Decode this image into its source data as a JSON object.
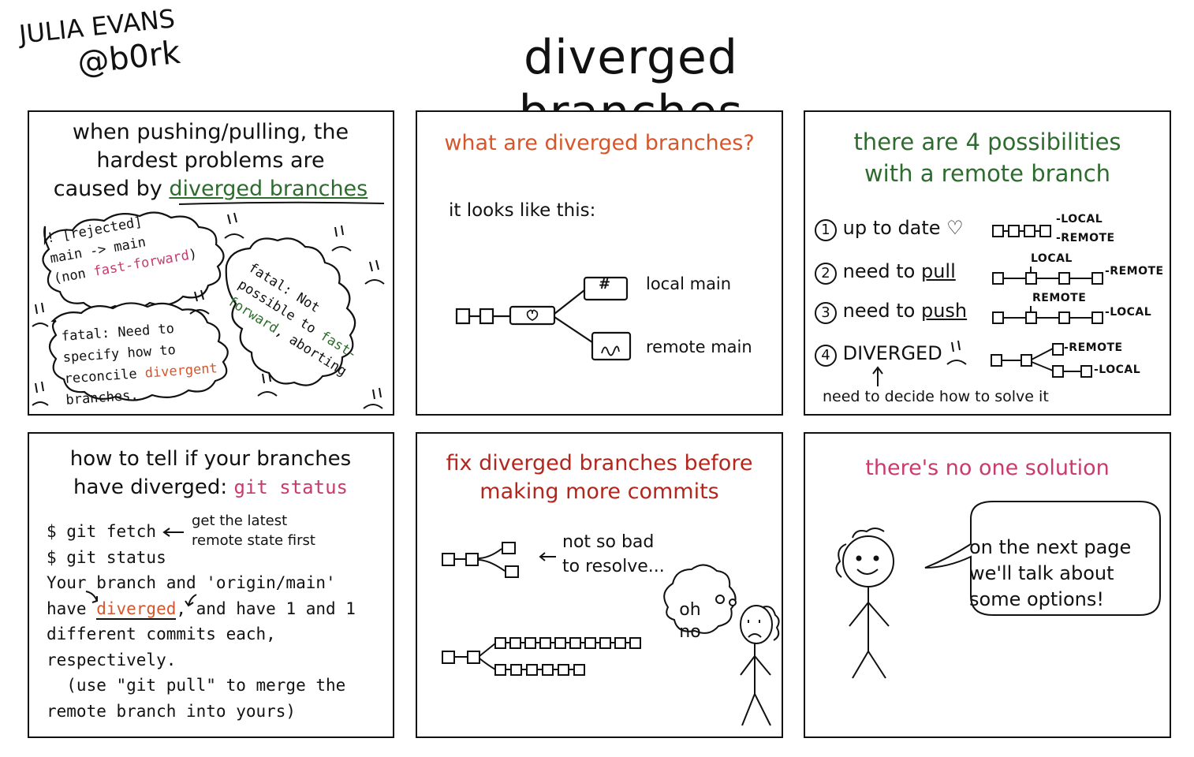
{
  "author": {
    "name": "JULIA EVANS",
    "handle": "@b0rk"
  },
  "title": "diverged branches",
  "panel1": {
    "title_line1": "when pushing/pulling, the",
    "title_line2": "hardest problems are",
    "title_line3_prefix": "caused by ",
    "title_line3_highlight": "diverged branches",
    "cloud1_line1": "! [rejected]",
    "cloud1_line2": "main -> main",
    "cloud1_line3_prefix": "(non ",
    "cloud1_line3_highlight": "fast-forward",
    "cloud1_line3_suffix": ")",
    "cloud2_line1": "fatal: Not",
    "cloud2_line2": "possible to ",
    "cloud2_line2_highlight": "fast-",
    "cloud2_line3_highlight": "forward",
    "cloud2_line3_suffix": ", aborting",
    "cloud3_line1": "fatal: Need to",
    "cloud3_line2": "specify how to",
    "cloud3_line3_prefix": "reconcile ",
    "cloud3_line3_highlight": "divergent",
    "cloud3_line4": "branches."
  },
  "panel2": {
    "title": "what are diverged branches?",
    "subtitle": "it looks like this:",
    "local_label": "local main",
    "remote_label": "remote main",
    "local_glyph": "#",
    "remote_glyph": "~"
  },
  "panel3": {
    "title_line1": "there are 4 possibilities",
    "title_line2": "with a remote branch",
    "items": [
      {
        "num": "1",
        "text": "up to date",
        "suffix": "♡"
      },
      {
        "num": "2",
        "text_prefix": "need to ",
        "text_u": "pull"
      },
      {
        "num": "3",
        "text_prefix": "need to ",
        "text_u": "push"
      },
      {
        "num": "4",
        "text": "DIVERGED"
      }
    ],
    "labels": {
      "local": "LOCAL",
      "remote": "REMOTE",
      "dash_local": "-LOCAL",
      "dash_remote": "-REMOTE"
    },
    "footnote": "need to decide how to solve it"
  },
  "panel4": {
    "title_line1": "how to tell if your branches",
    "title_line2_prefix": "have diverged: ",
    "title_line2_code": "git status",
    "cmd1": "$ git fetch",
    "note_line1": "get the latest",
    "note_line2": "remote state first",
    "cmd2": "$ git status",
    "out_line1": "Your branch and 'origin/main'",
    "out_line2_prefix": "have ",
    "out_line2_highlight": "diverged",
    "out_line2_suffix": ", and have 1 and 1",
    "out_line3": "different commits each,",
    "out_line4": "respectively.",
    "out_line5": "  (use \"git pull\" to merge the",
    "out_line6": "remote branch into yours)"
  },
  "panel5": {
    "title_line1": "fix diverged branches before",
    "title_line2": "making more commits",
    "note_line1": "not so bad",
    "note_line2": "to resolve...",
    "thought_line1": "oh",
    "thought_line2": "no"
  },
  "panel6": {
    "title": "there's no one solution",
    "speech_line1": "on the next page",
    "speech_line2": "we'll talk about",
    "speech_line3": "some options!"
  },
  "colors": {
    "green": "#2e6b2e",
    "orange": "#d6562b",
    "pink": "#c93a6e",
    "red": "#b3261e",
    "ink": "#111111"
  }
}
